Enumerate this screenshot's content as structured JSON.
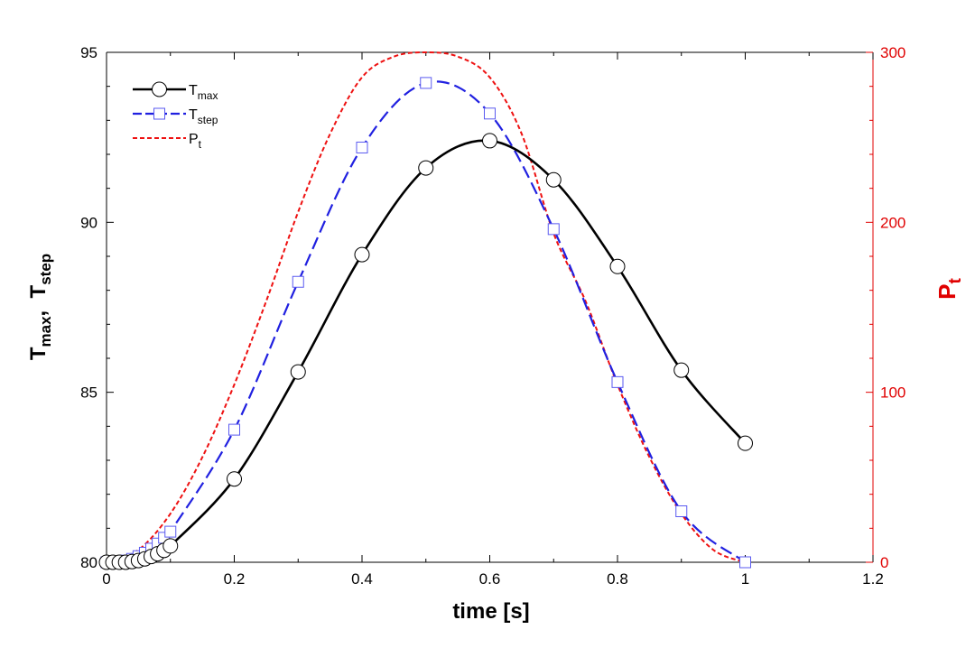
{
  "chart_data": {
    "type": "line",
    "title": "",
    "xlabel": "time  [s]",
    "ylabel": "T_max,  T_step",
    "ylabel_parts": [
      {
        "main": "T",
        "sub": "max"
      },
      {
        "sep": ",  "
      },
      {
        "main": "T",
        "sub": "step"
      }
    ],
    "y2label": {
      "main": "P",
      "sub": "t"
    },
    "xlim": [
      0,
      1.2
    ],
    "ylim": [
      80,
      95
    ],
    "y2lim": [
      0,
      300
    ],
    "xticks": [
      "0",
      "0.2",
      "0.4",
      "0.6",
      "0.8",
      "1",
      "1.2"
    ],
    "yticks": [
      "80",
      "85",
      "90",
      "95"
    ],
    "y2ticks": [
      "0",
      "100",
      "200",
      "300"
    ],
    "legend_position": "top-left",
    "grid": false,
    "colors": {
      "t_max": "#000000",
      "t_step": "#2020e0",
      "t_step_marker": "#5a5af0",
      "p_t": "#ee1111",
      "right_axis": "#e00000"
    },
    "series": [
      {
        "name": "T_max",
        "legend": {
          "main": "T",
          "sub": "max"
        },
        "axis": "left",
        "line_style": "solid",
        "marker": "circle",
        "x": [
          0,
          0.01,
          0.02,
          0.03,
          0.04,
          0.05,
          0.06,
          0.07,
          0.08,
          0.09,
          0.1,
          0.2,
          0.3,
          0.4,
          0.5,
          0.6,
          0.7,
          0.8,
          0.9,
          1.0
        ],
        "y": [
          80.0,
          80.0,
          80.0,
          80.0,
          80.02,
          80.05,
          80.1,
          80.17,
          80.25,
          80.35,
          80.48,
          82.45,
          85.6,
          89.05,
          91.6,
          92.4,
          91.25,
          88.7,
          85.65,
          83.5
        ]
      },
      {
        "name": "T_step",
        "legend": {
          "main": "T",
          "sub": "step"
        },
        "axis": "left",
        "line_style": "dashed",
        "marker": "square",
        "x": [
          0,
          0.01,
          0.02,
          0.03,
          0.04,
          0.05,
          0.06,
          0.07,
          0.08,
          0.09,
          0.1,
          0.2,
          0.3,
          0.4,
          0.5,
          0.6,
          0.7,
          0.8,
          0.9,
          1.0
        ],
        "y": [
          80.0,
          80.0,
          80.02,
          80.05,
          80.1,
          80.18,
          80.28,
          80.4,
          80.55,
          80.72,
          80.9,
          83.9,
          88.25,
          92.2,
          94.1,
          93.2,
          89.8,
          85.3,
          81.5,
          80.0
        ]
      },
      {
        "name": "P_t",
        "legend": {
          "main": "P",
          "sub": "t"
        },
        "axis": "right",
        "line_style": "dotted",
        "marker": "none",
        "x": [
          0,
          0.05,
          0.1,
          0.15,
          0.2,
          0.25,
          0.3,
          0.35,
          0.4,
          0.45,
          0.5,
          0.55,
          0.6,
          0.65,
          0.7,
          0.75,
          0.8,
          0.85,
          0.9,
          0.95,
          1.0
        ],
        "y": [
          0,
          7.3,
          28.6,
          61.8,
          104.5,
          153.6,
          206.1,
          252.0,
          285.3,
          297.5,
          300.0,
          297.5,
          285.3,
          252.0,
          193.5,
          153.6,
          104.5,
          61.8,
          28.6,
          7.3,
          0
        ]
      }
    ]
  }
}
